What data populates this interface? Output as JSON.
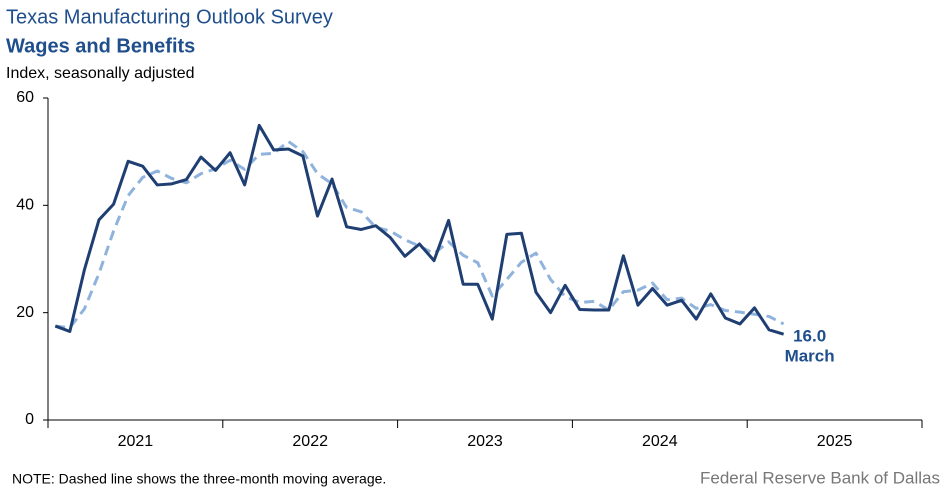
{
  "chart_data": {
    "type": "line",
    "title": "Texas Manufacturing Outlook Survey",
    "subtitle": "Wages and Benefits",
    "y_label": "Index, seasonally adjusted",
    "note": "NOTE: Dashed line shows the three-month  moving average.",
    "source": "Federal Reserve Bank of Dallas",
    "year_labels": [
      "2021",
      "2022",
      "2023",
      "2024",
      "2025"
    ],
    "categories": [
      null,
      null,
      null,
      null,
      null,
      null,
      null,
      null,
      null,
      null,
      null,
      null,
      null,
      null,
      null,
      null,
      null,
      null,
      null,
      null,
      null,
      null,
      null,
      null,
      null,
      null,
      null,
      null,
      null,
      null,
      null,
      null,
      null,
      null,
      null,
      null,
      null,
      null,
      null,
      null,
      null,
      null,
      null,
      null,
      null,
      null,
      null,
      null,
      null,
      null,
      null
    ],
    "series": [
      {
        "name": "Index",
        "color": "#1f3f73",
        "dash": false,
        "values": [
          17.5,
          16.5,
          28,
          37.3,
          40.2,
          48.2,
          47.3,
          43.8,
          44,
          44.8,
          49,
          46.5,
          49.8,
          43.8,
          54.9,
          50.3,
          50.5,
          49.2,
          38,
          44.9,
          36,
          35.5,
          36.2,
          34,
          30.5,
          32.8,
          29.7,
          37.2,
          25.3,
          25.3,
          18.8,
          34.6,
          34.8,
          23.8,
          20,
          25.1,
          20.6,
          20.5,
          20.5,
          30.6,
          21.4,
          24.5,
          21.4,
          22.3,
          18.8,
          23.5,
          19,
          17.9,
          20.9,
          16.8,
          16
        ]
      },
      {
        "name": "Three-month moving average",
        "color": "#8fb3dc",
        "dash": true,
        "values": [
          17.5,
          17.2,
          20.7,
          27.3,
          35.2,
          41.8,
          45.2,
          46.4,
          45,
          44.2,
          45.9,
          46.8,
          48.4,
          46.7,
          49.5,
          49.7,
          51.9,
          50,
          45.9,
          44,
          39.6,
          38.8,
          35.9,
          35.2,
          33.6,
          32.4,
          31,
          33.2,
          30.7,
          29.3,
          23.1,
          26.2,
          29.4,
          31.1,
          26.2,
          23,
          21.9,
          22.1,
          20.5,
          23.9,
          24.2,
          25.5,
          22.4,
          22.7,
          20.8,
          21.5,
          20.4,
          20.1,
          19.7,
          19.3,
          17.9
        ]
      }
    ],
    "annotation": {
      "value": "16.0",
      "period": "March"
    },
    "ylim": [
      0,
      60
    ],
    "yticks": [
      0,
      20,
      40,
      60
    ],
    "grid": false
  }
}
